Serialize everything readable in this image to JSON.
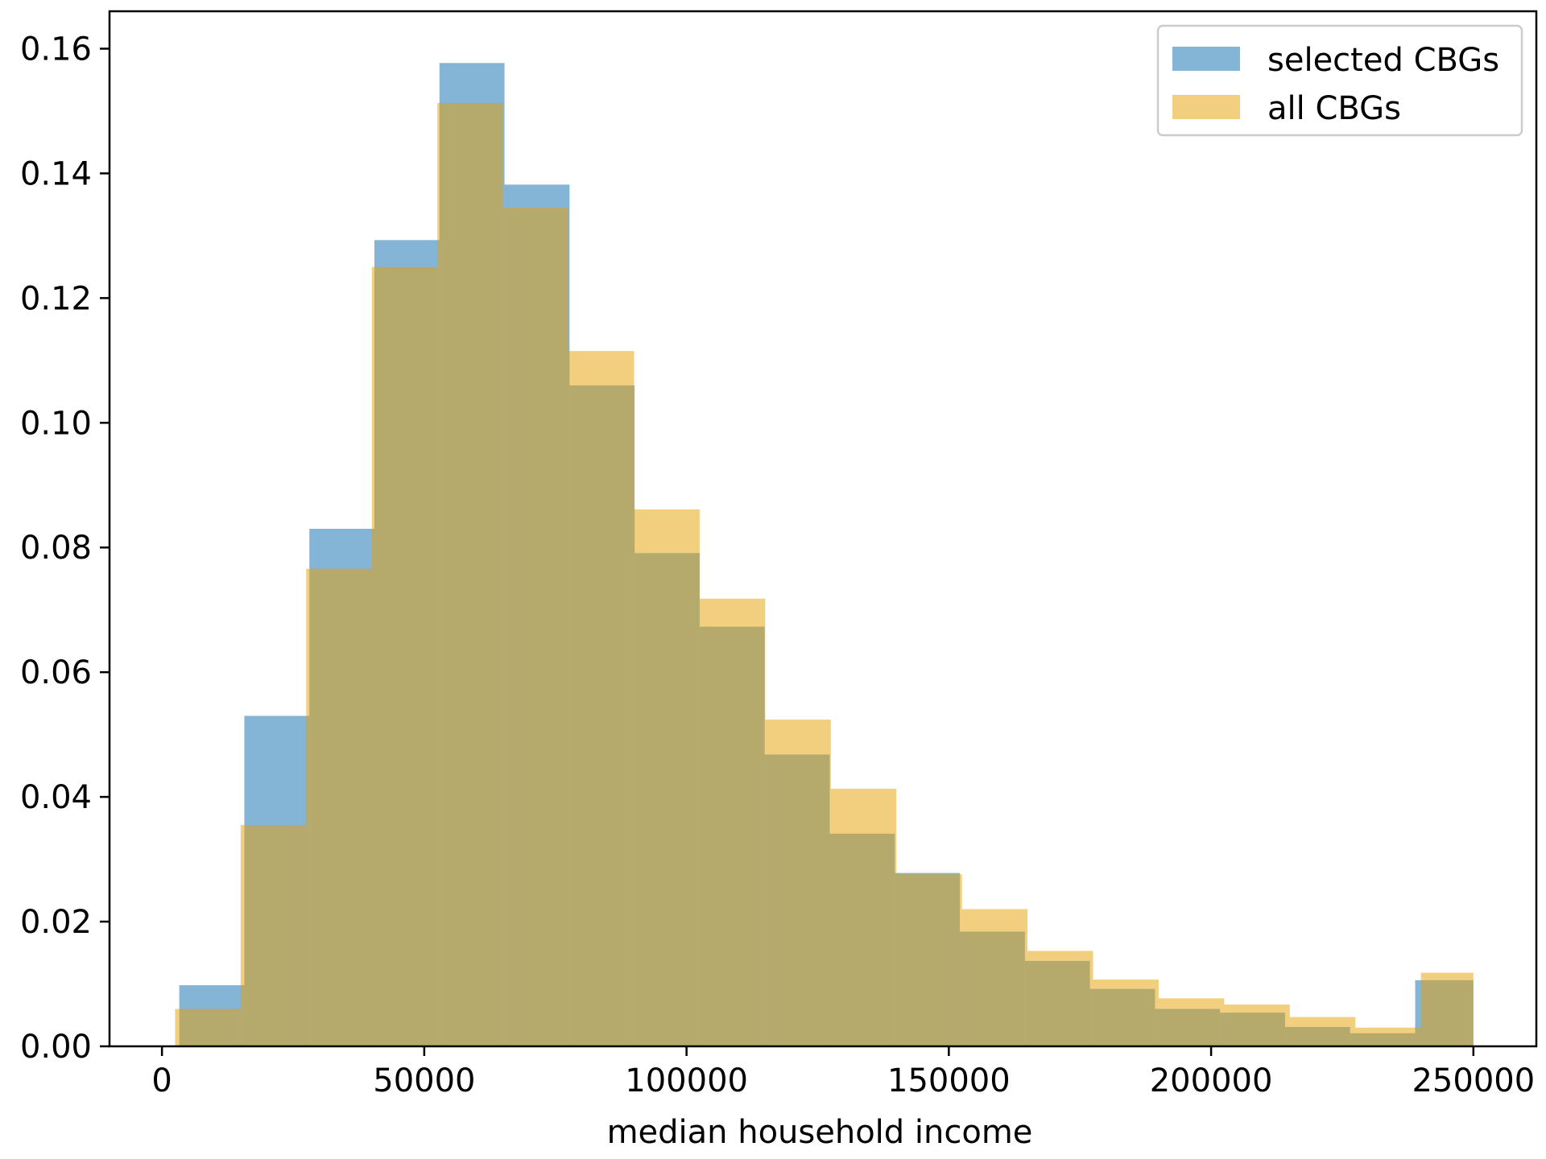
{
  "chart_data": {
    "type": "bar",
    "subtype": "overlapping-histogram",
    "title": "",
    "xlabel": "median household income",
    "ylabel": "",
    "xlim": [
      -10000,
      262000
    ],
    "ylim": [
      0,
      0.166
    ],
    "x_ticks": [
      0,
      50000,
      100000,
      150000,
      200000,
      250000
    ],
    "x_tick_labels": [
      "0",
      "50000",
      "100000",
      "150000",
      "200000",
      "250000"
    ],
    "y_ticks": [
      0.0,
      0.02,
      0.04,
      0.06,
      0.08,
      0.1,
      0.12,
      0.14,
      0.16
    ],
    "y_tick_labels": [
      "0.00",
      "0.02",
      "0.04",
      "0.06",
      "0.08",
      "0.10",
      "0.12",
      "0.14",
      "0.16"
    ],
    "grid": false,
    "legend_position": "top-right",
    "series": [
      {
        "name": "selected CBGs",
        "color": "#1f77b4",
        "alpha": 0.55,
        "bin_edges": [
          3300,
          15700,
          28100,
          40500,
          52900,
          65300,
          77700,
          90100,
          102500,
          114900,
          127300,
          139700,
          152100,
          164500,
          176900,
          189300,
          201700,
          214100,
          226500,
          238900,
          250000
        ],
        "values": [
          0.0098,
          0.053,
          0.083,
          0.1293,
          0.1577,
          0.1382,
          0.106,
          0.0791,
          0.0673,
          0.0468,
          0.0341,
          0.0278,
          0.0184,
          0.0137,
          0.0092,
          0.006,
          0.0054,
          0.0031,
          0.0021,
          0.0106
        ]
      },
      {
        "name": "all CBGs",
        "color": "#e69f00",
        "alpha": 0.5,
        "bin_edges": [
          2500,
          15000,
          27500,
          40000,
          52500,
          65000,
          77500,
          90000,
          102500,
          115000,
          127500,
          140000,
          152500,
          165000,
          177500,
          190000,
          202500,
          215000,
          227500,
          240000,
          250000
        ],
        "values": [
          0.006,
          0.0355,
          0.0766,
          0.125,
          0.1513,
          0.1345,
          0.1115,
          0.0861,
          0.0718,
          0.0524,
          0.0413,
          0.0276,
          0.022,
          0.0153,
          0.0107,
          0.0077,
          0.0067,
          0.0047,
          0.003,
          0.0118
        ]
      }
    ]
  }
}
